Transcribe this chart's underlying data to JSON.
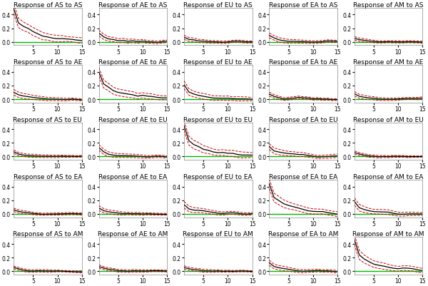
{
  "regions": [
    "AS",
    "AE",
    "EU",
    "EA",
    "AM"
  ],
  "n_steps": 15,
  "ylim": [
    -0.05,
    0.5
  ],
  "yticks": [
    0.0,
    0.2,
    0.4
  ],
  "xticks": [
    5,
    10,
    15
  ],
  "color_main": "#000000",
  "color_upper": "#CC0000",
  "color_lower": "#CC0000",
  "color_zero": "#00BB00",
  "title_fontsize": 6.5,
  "tick_fontsize": 5.5,
  "figsize": [
    6.0,
    4.02
  ],
  "dpi": 100,
  "lw_main": 0.9,
  "lw_band": 0.7,
  "background_color": "#ffffff",
  "irf_data": {
    "AS_AS": {
      "peak": 0.47,
      "sharp_drop": 0.55,
      "decay": 0.8,
      "noise": 0.018,
      "band": 0.055
    },
    "AE_AS": {
      "peak": 0.12,
      "sharp_drop": 0.6,
      "decay": 0.72,
      "noise": 0.012,
      "band": 0.03
    },
    "EU_AS": {
      "peak": 0.07,
      "sharp_drop": 0.65,
      "decay": 0.68,
      "noise": 0.01,
      "band": 0.022
    },
    "EA_AS": {
      "peak": 0.08,
      "sharp_drop": 0.62,
      "decay": 0.7,
      "noise": 0.011,
      "band": 0.025
    },
    "AM_AS": {
      "peak": 0.05,
      "sharp_drop": 0.68,
      "decay": 0.65,
      "noise": 0.008,
      "band": 0.018
    },
    "AS_AE": {
      "peak": 0.1,
      "sharp_drop": 0.55,
      "decay": 0.72,
      "noise": 0.012,
      "band": 0.028
    },
    "AE_AE": {
      "peak": 0.4,
      "sharp_drop": 0.55,
      "decay": 0.8,
      "noise": 0.016,
      "band": 0.05
    },
    "EU_AE": {
      "peak": 0.2,
      "sharp_drop": 0.5,
      "decay": 0.76,
      "noise": 0.014,
      "band": 0.038
    },
    "EA_AE": {
      "peak": 0.07,
      "sharp_drop": 0.62,
      "decay": 0.68,
      "noise": 0.01,
      "band": 0.02
    },
    "AM_AE": {
      "peak": 0.08,
      "sharp_drop": 0.6,
      "decay": 0.7,
      "noise": 0.01,
      "band": 0.022
    },
    "AS_EU": {
      "peak": 0.06,
      "sharp_drop": 0.6,
      "decay": 0.68,
      "noise": 0.009,
      "band": 0.018
    },
    "AE_EU": {
      "peak": 0.12,
      "sharp_drop": 0.55,
      "decay": 0.72,
      "noise": 0.012,
      "band": 0.028
    },
    "EU_EU": {
      "peak": 0.45,
      "sharp_drop": 0.52,
      "decay": 0.8,
      "noise": 0.017,
      "band": 0.052
    },
    "EA_EU": {
      "peak": 0.15,
      "sharp_drop": 0.55,
      "decay": 0.74,
      "noise": 0.013,
      "band": 0.032
    },
    "AM_EU": {
      "peak": 0.05,
      "sharp_drop": 0.65,
      "decay": 0.65,
      "noise": 0.008,
      "band": 0.016
    },
    "AS_EA": {
      "peak": 0.06,
      "sharp_drop": 0.62,
      "decay": 0.68,
      "noise": 0.009,
      "band": 0.018
    },
    "AE_EA": {
      "peak": 0.09,
      "sharp_drop": 0.6,
      "decay": 0.7,
      "noise": 0.01,
      "band": 0.022
    },
    "EU_EA": {
      "peak": 0.14,
      "sharp_drop": 0.55,
      "decay": 0.73,
      "noise": 0.012,
      "band": 0.03
    },
    "EA_EA": {
      "peak": 0.43,
      "sharp_drop": 0.53,
      "decay": 0.8,
      "noise": 0.016,
      "band": 0.05
    },
    "AM_EA": {
      "peak": 0.18,
      "sharp_drop": 0.52,
      "decay": 0.75,
      "noise": 0.014,
      "band": 0.035
    },
    "AS_AM": {
      "peak": 0.05,
      "sharp_drop": 0.64,
      "decay": 0.66,
      "noise": 0.008,
      "band": 0.016
    },
    "AE_AM": {
      "peak": 0.07,
      "sharp_drop": 0.62,
      "decay": 0.68,
      "noise": 0.009,
      "band": 0.018
    },
    "EU_AM": {
      "peak": 0.06,
      "sharp_drop": 0.63,
      "decay": 0.67,
      "noise": 0.009,
      "band": 0.016
    },
    "EA_AM": {
      "peak": 0.12,
      "sharp_drop": 0.58,
      "decay": 0.72,
      "noise": 0.011,
      "band": 0.026
    },
    "AM_AM": {
      "peak": 0.45,
      "sharp_drop": 0.53,
      "decay": 0.8,
      "noise": 0.016,
      "band": 0.05
    }
  }
}
